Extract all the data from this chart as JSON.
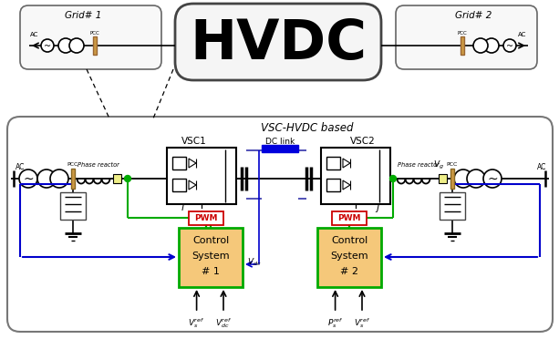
{
  "bg_color": "#ffffff",
  "hvdc_text": "HVDC",
  "vsc_hvdc_label": "VSC-HVDC based",
  "vsc1_label": "VSC1",
  "vsc2_label": "VSC2",
  "dc_link_label": "DC link",
  "pcc_label": "PCC",
  "ac_label": "AC",
  "phase_reactor_label": "Phase reactor",
  "ctrl1_lines": [
    "Control",
    "System",
    "# 1"
  ],
  "ctrl2_lines": [
    "Control",
    "System",
    "# 2"
  ],
  "pwm_label": "PWM",
  "grid1_label": "Grid# 1",
  "grid2_label": "Grid# 2",
  "color_green": "#00aa00",
  "color_blue": "#0000cc",
  "color_ctrl_fill": "#f5c87a",
  "color_ctrl_edge": "#00aa00",
  "color_pcc_bar": "#cc9944",
  "color_main_box_bg": "#ffffff",
  "color_dc_link": "#0000dd"
}
